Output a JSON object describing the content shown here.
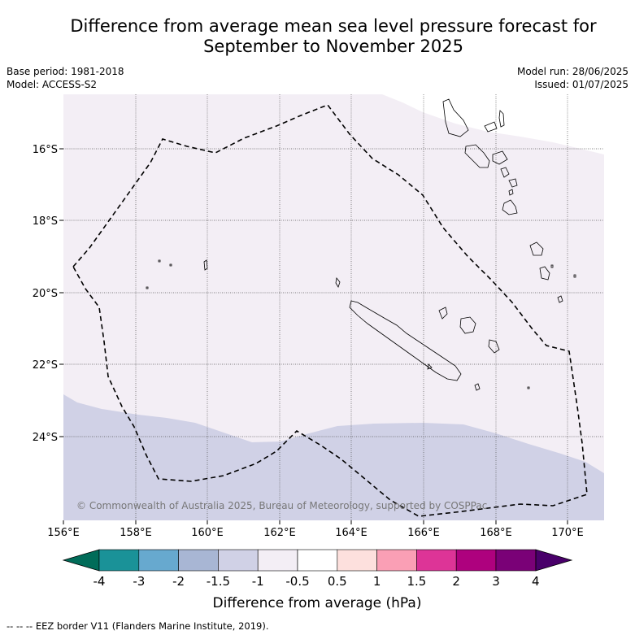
{
  "title_line1": "Difference from average mean sea level pressure forecast for",
  "title_line2": "September to November 2025",
  "base_period": "Base period: 1981-2018",
  "model": "Model: ACCESS-S2",
  "model_run": "Model run: 28/06/2025",
  "issued": "Issued: 01/07/2025",
  "copyright": "© Commonwealth of Australia 2025, Bureau of Meteorology, supported by COSPPac",
  "lat_labels": [
    "16°S",
    "18°S",
    "20°S",
    "22°S",
    "24°S"
  ],
  "lon_labels": [
    "156°E",
    "158°E",
    "160°E",
    "162°E",
    "164°E",
    "166°E",
    "168°E",
    "170°E"
  ],
  "colorbar": {
    "label": "Difference from average (hPa)",
    "ticks": [
      "-4",
      "-3",
      "-2",
      "-1.5",
      "-1",
      "-0.5",
      "0.5",
      "1",
      "1.5",
      "2",
      "3",
      "4"
    ],
    "colors": [
      "#1a9298",
      "#67a9cf",
      "#a8b6d4",
      "#d0d1e6",
      "#f3eef5",
      "#ffffff",
      "#fde0dd",
      "#fa9fb5",
      "#dd3497",
      "#ae017e",
      "#7a0177"
    ],
    "low_extend": "#016c59",
    "high_extend": "#49006a"
  },
  "footnote": "--  --  -- EEZ border V11 (Flanders Marine Institute, 2019).",
  "colors": {
    "field_light": "#f3eef5",
    "field_blue": "#d0d1e6"
  }
}
